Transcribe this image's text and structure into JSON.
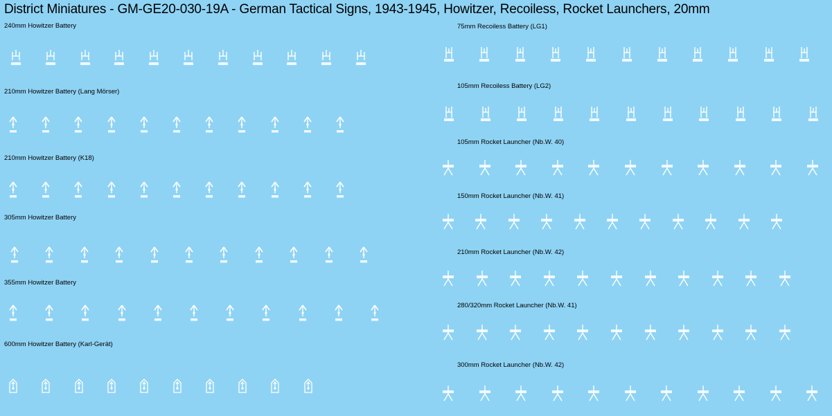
{
  "title": "District Miniatures - GM-GE20-030-19A - German Tactical Signs, 1943-1945, Howitzer, Recoiless, Rocket Launchers, 20mm",
  "colors": {
    "background": "#8fd3f4",
    "decal": "#ffffff",
    "text": "#000000"
  },
  "sections": [
    {
      "label": "240mm Howitzer Battery",
      "symbol": "howitzer-h-icon",
      "count": 11
    },
    {
      "label": "210mm Howitzer Battery (Lang Mörser)",
      "symbol": "arrow-up-icon",
      "count": 11
    },
    {
      "label": "210mm Howitzer Battery (K18)",
      "symbol": "arrow-up-icon",
      "count": 11
    },
    {
      "label": "305mm Howitzer Battery",
      "symbol": "arrow-up-icon",
      "count": 11
    },
    {
      "label": "355mm Howitzer Battery",
      "symbol": "arrow-up-icon",
      "count": 11
    },
    {
      "label": "600mm Howitzer Battery (Karl-Gerät)",
      "symbol": "shield-arrow-icon",
      "count": 10
    },
    {
      "label": "75mm Recoiless Battery (LG1)",
      "symbol": "recoilless-h-icon",
      "count": 11
    },
    {
      "label": "105mm Recoiless Battery (LG2)",
      "symbol": "recoilless-h-icon",
      "count": 11
    },
    {
      "label": "105mm Rocket Launcher (Nb.W. 40)",
      "symbol": "rocket-launcher-icon",
      "count": 11
    },
    {
      "label": "150mm Rocket Launcher (Nb.W. 41)",
      "symbol": "rocket-launcher-icon",
      "count": 11
    },
    {
      "label": "210mm Rocket Launcher (Nb.W. 42)",
      "symbol": "rocket-launcher-icon",
      "count": 11
    },
    {
      "label": "280/320mm Rocket Launcher (Nb.W. 41)",
      "symbol": "rocket-launcher-icon",
      "count": 11
    },
    {
      "label": "300mm Rocket Launcher (Nb.W. 42)",
      "symbol": "rocket-launcher-icon",
      "count": 11
    }
  ]
}
